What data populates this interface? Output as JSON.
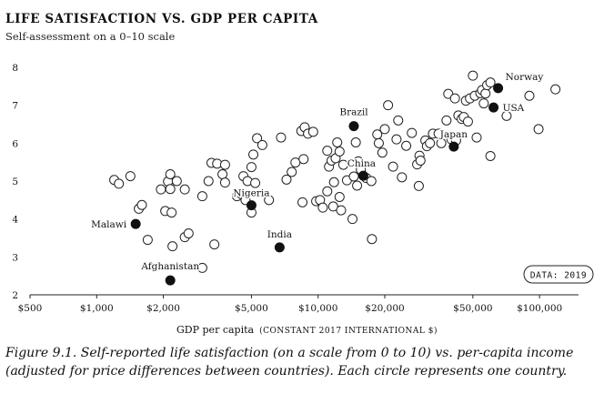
{
  "chart_data": {
    "type": "scatter",
    "title": "LIFE SATISFACTION VS. GDP PER CAPITA",
    "subtitle": "Self-assessment on a 0–10 scale",
    "xlabel": "GDP per capita",
    "xlabel_unit": "(CONSTANT 2017 INTERNATIONAL $)",
    "ylabel": "",
    "x_scale": "log",
    "xlim": [
      500,
      150000
    ],
    "ylim": [
      2,
      8
    ],
    "x_ticks": [
      {
        "value": 500,
        "label": "$500"
      },
      {
        "value": 1000,
        "label": "$1,000"
      },
      {
        "value": 2000,
        "label": "$2,000"
      },
      {
        "value": 5000,
        "label": "$5,000"
      },
      {
        "value": 10000,
        "label": "$10,000"
      },
      {
        "value": 20000,
        "label": "$20,000"
      },
      {
        "value": 50000,
        "label": "$50,000"
      },
      {
        "value": 100000,
        "label": "$100,000"
      }
    ],
    "y_ticks": [
      2,
      3,
      4,
      5,
      6,
      7,
      8
    ],
    "grid": false,
    "source_badge": "DATA: 2019",
    "highlighted": [
      {
        "name": "Norway",
        "x": 65000,
        "y": 7.45
      },
      {
        "name": "USA",
        "x": 62000,
        "y": 6.94
      },
      {
        "name": "Brazil",
        "x": 14500,
        "y": 6.45
      },
      {
        "name": "Japan",
        "x": 41000,
        "y": 5.91
      },
      {
        "name": "China",
        "x": 16000,
        "y": 5.14
      },
      {
        "name": "Nigeria",
        "x": 5000,
        "y": 4.36
      },
      {
        "name": "Malawi",
        "x": 1500,
        "y": 3.87
      },
      {
        "name": "India",
        "x": 6700,
        "y": 3.25
      },
      {
        "name": "Afghanistan",
        "x": 2150,
        "y": 2.38
      }
    ],
    "points": [
      [
        1200,
        5.03
      ],
      [
        1260,
        4.93
      ],
      [
        1420,
        5.13
      ],
      [
        1550,
        4.27
      ],
      [
        1600,
        4.37
      ],
      [
        1700,
        3.45
      ],
      [
        1950,
        4.78
      ],
      [
        2040,
        4.21
      ],
      [
        2100,
        4.99
      ],
      [
        2150,
        5.18
      ],
      [
        2150,
        4.79
      ],
      [
        2180,
        4.17
      ],
      [
        2200,
        3.28
      ],
      [
        2300,
        5.0
      ],
      [
        2500,
        4.78
      ],
      [
        2500,
        3.52
      ],
      [
        2600,
        3.62
      ],
      [
        3000,
        4.6
      ],
      [
        3000,
        2.71
      ],
      [
        3200,
        5.0
      ],
      [
        3300,
        5.48
      ],
      [
        3400,
        3.33
      ],
      [
        3500,
        5.46
      ],
      [
        3700,
        5.18
      ],
      [
        3800,
        4.96
      ],
      [
        3800,
        5.43
      ],
      [
        4300,
        4.6
      ],
      [
        4500,
        4.66
      ],
      [
        4600,
        5.13
      ],
      [
        4700,
        4.5
      ],
      [
        4800,
        5.0
      ],
      [
        5000,
        5.37
      ],
      [
        5000,
        4.17
      ],
      [
        5100,
        5.7
      ],
      [
        5200,
        4.95
      ],
      [
        5300,
        6.13
      ],
      [
        5600,
        5.95
      ],
      [
        6000,
        4.5
      ],
      [
        6800,
        6.15
      ],
      [
        7200,
        5.04
      ],
      [
        7600,
        5.24
      ],
      [
        7900,
        5.49
      ],
      [
        8400,
        6.32
      ],
      [
        8500,
        4.44
      ],
      [
        8600,
        5.58
      ],
      [
        8700,
        6.42
      ],
      [
        9000,
        6.25
      ],
      [
        9500,
        6.3
      ],
      [
        9800,
        4.47
      ],
      [
        10200,
        4.5
      ],
      [
        10500,
        4.3
      ],
      [
        11000,
        5.8
      ],
      [
        11000,
        4.73
      ],
      [
        11200,
        5.38
      ],
      [
        11500,
        5.54
      ],
      [
        11700,
        4.33
      ],
      [
        11800,
        4.97
      ],
      [
        12000,
        5.6
      ],
      [
        12200,
        6.02
      ],
      [
        12500,
        4.58
      ],
      [
        12500,
        5.78
      ],
      [
        12700,
        4.23
      ],
      [
        13000,
        5.43
      ],
      [
        13500,
        5.02
      ],
      [
        14300,
        4.0
      ],
      [
        14500,
        5.12
      ],
      [
        14800,
        6.02
      ],
      [
        15000,
        4.88
      ],
      [
        15200,
        5.52
      ],
      [
        15600,
        5.3
      ],
      [
        16500,
        5.08
      ],
      [
        17400,
        5.0
      ],
      [
        17500,
        3.47
      ],
      [
        18500,
        6.23
      ],
      [
        18800,
        6.0
      ],
      [
        19500,
        5.75
      ],
      [
        20000,
        6.37
      ],
      [
        20700,
        7.0
      ],
      [
        21800,
        5.38
      ],
      [
        22600,
        6.1
      ],
      [
        23000,
        6.6
      ],
      [
        23900,
        5.1
      ],
      [
        25000,
        5.93
      ],
      [
        26500,
        6.27
      ],
      [
        28000,
        5.44
      ],
      [
        28500,
        4.87
      ],
      [
        28700,
        5.67
      ],
      [
        29000,
        5.54
      ],
      [
        30500,
        6.07
      ],
      [
        31000,
        5.92
      ],
      [
        32000,
        6.0
      ],
      [
        33000,
        6.25
      ],
      [
        35000,
        6.25
      ],
      [
        36000,
        6.0
      ],
      [
        38000,
        6.6
      ],
      [
        38700,
        7.3
      ],
      [
        40000,
        6.1
      ],
      [
        41500,
        7.18
      ],
      [
        42000,
        6.07
      ],
      [
        43000,
        6.73
      ],
      [
        44500,
        6.64
      ],
      [
        45500,
        6.69
      ],
      [
        46500,
        7.12
      ],
      [
        47500,
        6.57
      ],
      [
        48500,
        7.18
      ],
      [
        50000,
        7.78
      ],
      [
        51000,
        7.25
      ],
      [
        52000,
        6.15
      ],
      [
        54000,
        7.32
      ],
      [
        55000,
        7.4
      ],
      [
        56000,
        7.05
      ],
      [
        57000,
        7.31
      ],
      [
        58000,
        7.53
      ],
      [
        60000,
        5.66
      ],
      [
        60000,
        7.6
      ],
      [
        71000,
        6.72
      ],
      [
        90000,
        7.25
      ],
      [
        99000,
        6.37
      ],
      [
        118000,
        7.42
      ]
    ]
  },
  "caption": "Figure 9.1. Self-reported life satisfaction (on a scale from 0 to 10) vs. per-capita income (adjusted for price differences between countries). Each circle represents one country."
}
